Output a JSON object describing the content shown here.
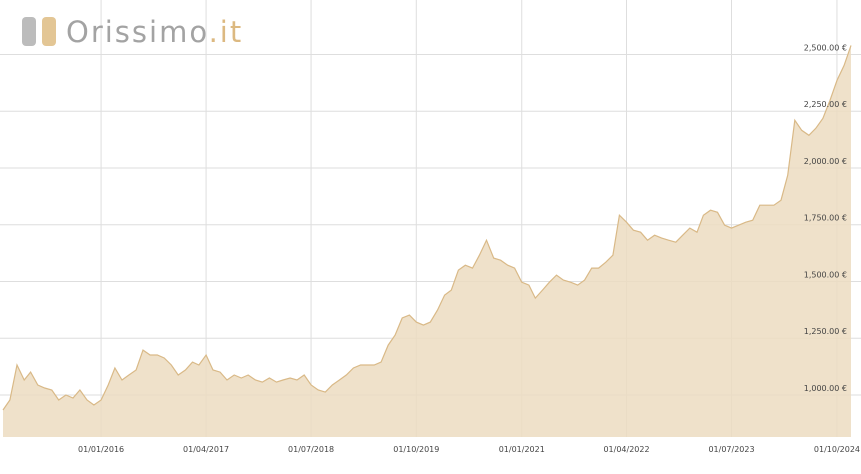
{
  "logo": {
    "name": "Orissimo",
    "domain": ".it"
  },
  "chart_data": {
    "type": "area",
    "color": "#d9b987",
    "fill": "#ecdcc1",
    "grid": true,
    "x": [
      "01/11/2014",
      "01/12/2014",
      "01/01/2015",
      "01/02/2015",
      "01/03/2015",
      "01/04/2015",
      "01/05/2015",
      "01/06/2015",
      "01/07/2015",
      "01/08/2015",
      "01/09/2015",
      "01/10/2015",
      "01/11/2015",
      "01/12/2015",
      "01/01/2016",
      "01/02/2016",
      "01/03/2016",
      "01/04/2016",
      "01/05/2016",
      "01/06/2016",
      "01/07/2016",
      "01/08/2016",
      "01/09/2016",
      "01/10/2016",
      "01/11/2016",
      "01/12/2016",
      "01/01/2017",
      "01/02/2017",
      "01/03/2017",
      "01/04/2017",
      "01/05/2017",
      "01/06/2017",
      "01/07/2017",
      "01/08/2017",
      "01/09/2017",
      "01/10/2017",
      "01/11/2017",
      "01/12/2017",
      "01/01/2018",
      "01/02/2018",
      "01/03/2018",
      "01/04/2018",
      "01/05/2018",
      "01/06/2018",
      "01/07/2018",
      "01/08/2018",
      "01/09/2018",
      "01/10/2018",
      "01/11/2018",
      "01/12/2018",
      "01/01/2019",
      "01/02/2019",
      "01/03/2019",
      "01/04/2019",
      "01/05/2019",
      "01/06/2019",
      "01/07/2019",
      "01/08/2019",
      "01/09/2019",
      "01/10/2019",
      "01/11/2019",
      "01/12/2019",
      "01/01/2020",
      "01/02/2020",
      "01/03/2020",
      "01/04/2020",
      "01/05/2020",
      "01/06/2020",
      "01/07/2020",
      "01/08/2020",
      "01/09/2020",
      "01/10/2020",
      "01/11/2020",
      "01/12/2020",
      "01/01/2021",
      "01/02/2021",
      "01/03/2021",
      "01/04/2021",
      "01/05/2021",
      "01/06/2021",
      "01/07/2021",
      "01/08/2021",
      "01/09/2021",
      "01/10/2021",
      "01/11/2021",
      "01/12/2021",
      "01/01/2022",
      "01/02/2022",
      "01/03/2022",
      "01/04/2022",
      "01/05/2022",
      "01/06/2022",
      "01/07/2022",
      "01/08/2022",
      "01/09/2022",
      "01/10/2022",
      "01/11/2022",
      "01/12/2022",
      "01/01/2023",
      "01/02/2023",
      "01/03/2023",
      "01/04/2023",
      "01/05/2023",
      "01/06/2023",
      "01/07/2023",
      "01/08/2023",
      "01/09/2023",
      "01/10/2023",
      "01/11/2023",
      "01/12/2023",
      "01/01/2024",
      "01/02/2024",
      "01/03/2024",
      "01/04/2024",
      "01/05/2024",
      "01/06/2024",
      "01/07/2024",
      "01/08/2024",
      "01/09/2024",
      "01/10/2024",
      "01/11/2024",
      "01/12/2024"
    ],
    "values": [
      934,
      978,
      1132,
      1066,
      1101,
      1044,
      1031,
      1022,
      978,
      1000,
      987,
      1022,
      978,
      956,
      978,
      1044,
      1119,
      1066,
      1088,
      1110,
      1198,
      1176,
      1176,
      1163,
      1132,
      1088,
      1110,
      1145,
      1132,
      1176,
      1110,
      1101,
      1066,
      1088,
      1075,
      1088,
      1066,
      1057,
      1075,
      1057,
      1066,
      1075,
      1066,
      1088,
      1044,
      1022,
      1013,
      1044,
      1066,
      1088,
      1119,
      1132,
      1132,
      1132,
      1145,
      1220,
      1264,
      1339,
      1352,
      1321,
      1308,
      1321,
      1374,
      1440,
      1462,
      1550,
      1572,
      1559,
      1616,
      1682,
      1603,
      1594,
      1572,
      1559,
      1497,
      1484,
      1427,
      1462,
      1497,
      1528,
      1506,
      1497,
      1484,
      1506,
      1559,
      1559,
      1585,
      1616,
      1792,
      1761,
      1726,
      1717,
      1682,
      1704,
      1691,
      1682,
      1673,
      1704,
      1735,
      1717,
      1792,
      1814,
      1805,
      1748,
      1735,
      1748,
      1761,
      1770,
      1836,
      1836,
      1836,
      1858,
      1968,
      2210,
      2166,
      2144,
      2175,
      2219,
      2298,
      2386,
      2452,
      2540
    ],
    "xlim": [
      "01/11/2014",
      "01/12/2024"
    ],
    "xticks": [
      "01/01/2016",
      "01/04/2017",
      "01/07/2018",
      "01/10/2019",
      "01/01/2021",
      "01/04/2022",
      "01/07/2023",
      "01/10/2024"
    ],
    "ylim": [
      815,
      2740
    ],
    "yticks": [
      {
        "value": 1000,
        "label": "1,000.00 €"
      },
      {
        "value": 1250,
        "label": "1,250.00 €"
      },
      {
        "value": 1500,
        "label": "1,500.00 €"
      },
      {
        "value": 1750,
        "label": "1,750.00 €"
      },
      {
        "value": 2000,
        "label": "2,000.00 €"
      },
      {
        "value": 2250,
        "label": "2,250.00 €"
      },
      {
        "value": 2500,
        "label": "2,500.00 €"
      }
    ]
  }
}
